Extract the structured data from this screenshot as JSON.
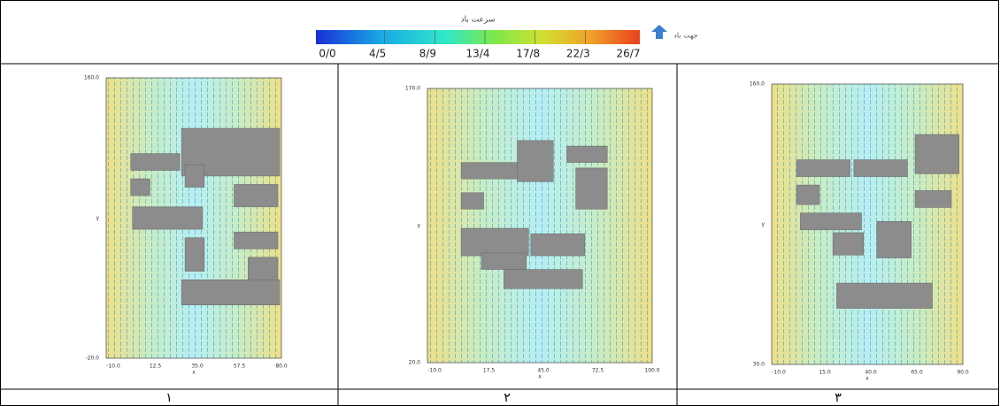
{
  "header": {
    "legend": {
      "title": "سرعت باد",
      "ticks": [
        "0/0",
        "4/5",
        "8/9",
        "13/4",
        "17/8",
        "22/3",
        "26/7"
      ],
      "direction_label": "جهت باد"
    }
  },
  "panels": [
    {
      "label": "١",
      "y_ticks": [
        "160.0",
        "y",
        "-20.0"
      ],
      "x_ticks": [
        "-10.0",
        "12.5",
        "35.0",
        "57.5",
        "80.0"
      ],
      "x_label": "x"
    },
    {
      "label": "٢",
      "y_ticks": [
        "170.0",
        "y",
        "20.0"
      ],
      "x_ticks": [
        "-10.0",
        "17.5",
        "45.0",
        "72.5",
        "100.0"
      ],
      "x_label": "x"
    },
    {
      "label": "٣",
      "y_ticks": [
        "160.0",
        "y",
        "30.0"
      ],
      "x_ticks": [
        "-10.0",
        "15.0",
        "40.0",
        "65.0",
        "90.0"
      ],
      "x_label": "x"
    }
  ]
}
